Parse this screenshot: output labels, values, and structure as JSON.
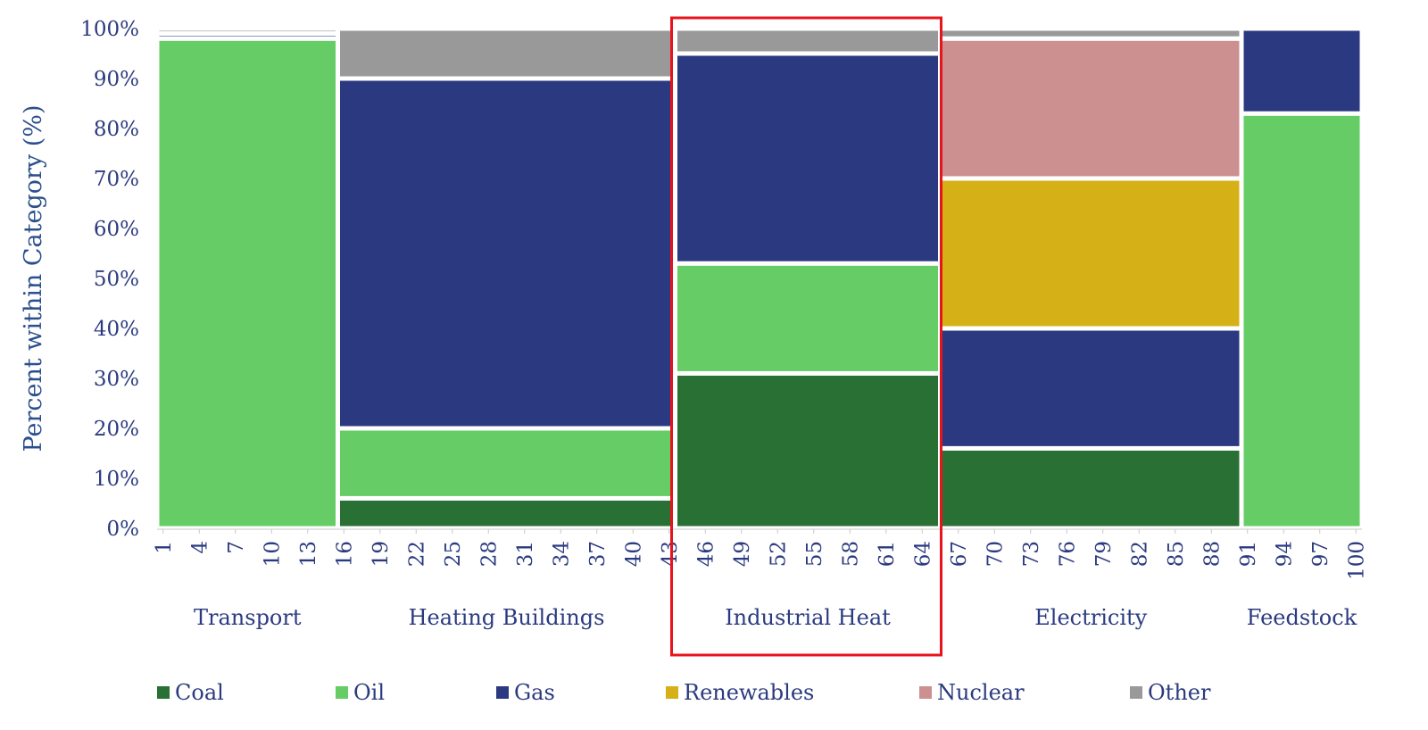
{
  "chart_data": {
    "type": "bar",
    "subtype": "marimekko",
    "ylabel": "Percent within Category (%)",
    "ylim": [
      0,
      100
    ],
    "y_ticks": [
      "0%",
      "10%",
      "20%",
      "30%",
      "40%",
      "50%",
      "60%",
      "70%",
      "80%",
      "90%",
      "100%"
    ],
    "x_range": [
      1,
      100
    ],
    "x_ticks": [
      1,
      4,
      7,
      10,
      13,
      16,
      19,
      22,
      25,
      28,
      31,
      34,
      37,
      40,
      43,
      46,
      49,
      52,
      55,
      58,
      61,
      64,
      67,
      70,
      73,
      76,
      79,
      82,
      85,
      88,
      91,
      94,
      97,
      100
    ],
    "series_names": [
      "Coal",
      "Oil",
      "Gas",
      "Renewables",
      "Nuclear",
      "Other"
    ],
    "colors": {
      "Coal": "#287034",
      "Oil": "#66cc66",
      "Gas": "#2b3a80",
      "Renewables": "#d6b017",
      "Nuclear": "#cc9090",
      "Other": "#999999"
    },
    "categories": [
      {
        "name": "Transport",
        "x_start": 0.5,
        "x_end": 15.5,
        "values": {
          "Coal": 0,
          "Oil": 98,
          "Gas": 1,
          "Renewables": 0,
          "Nuclear": 0,
          "Other": 1
        }
      },
      {
        "name": "Heating Buildings",
        "x_start": 15.5,
        "x_end": 43.5,
        "values": {
          "Coal": 6,
          "Oil": 14,
          "Gas": 70,
          "Renewables": 0,
          "Nuclear": 0,
          "Other": 10
        }
      },
      {
        "name": "Industrial Heat",
        "x_start": 43.5,
        "x_end": 65.5,
        "values": {
          "Coal": 31,
          "Oil": 22,
          "Gas": 42,
          "Renewables": 0,
          "Nuclear": 0,
          "Other": 5
        }
      },
      {
        "name": "Electricity",
        "x_start": 65.5,
        "x_end": 90.5,
        "values": {
          "Coal": 16,
          "Oil": 0,
          "Gas": 24,
          "Renewables": 30,
          "Nuclear": 28,
          "Other": 2
        }
      },
      {
        "name": "Feedstock",
        "x_start": 90.5,
        "x_end": 100.5,
        "values": {
          "Coal": 0,
          "Oil": 83,
          "Gas": 17,
          "Renewables": 0,
          "Nuclear": 0,
          "Other": 0
        }
      }
    ],
    "highlighted_category": "Industrial Heat",
    "highlight_color": "#e8141c",
    "legend_position": "bottom"
  }
}
